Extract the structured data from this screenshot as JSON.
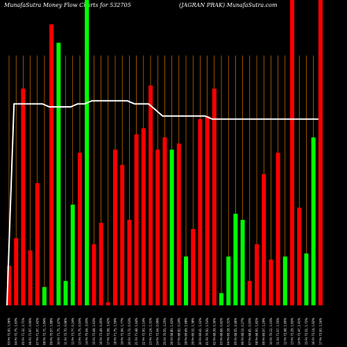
{
  "chart_data": {
    "type": "bar",
    "title_left": "MunafaSutra  Money Flow  Charts for 532705",
    "title_right": "(JAGRAN  PRAK) MunafaSutra.com",
    "ylim": [
      0,
      100
    ],
    "colors": {
      "up": "#00ff00",
      "down": "#ff0000",
      "line": "#ffffff",
      "grid": "#ff8c00",
      "background": "#000000"
    },
    "categories": [
      "03 Fri 72.00, 1.06%",
      "04 Fri 72.75, 1.63%",
      "05 Fri 71.32, 1.71%",
      "06 Fri 71.97, 0.90%",
      "07 Fri 71.97, 1.42%",
      "08 Fri 72.71, 1.84%",
      "09 Fri 70.57, 1.88%",
      "10 Fri 71.75, 1.47%",
      "11 Fri 72.70, 0.96%",
      "12 Fri 73.77, 0.24%",
      "13 Fri 73.75, 0.93%",
      "14 Fri 75.04, 3.93%",
      "15 Fri 73.08, 1.63%",
      "16 Fri 73.49, 0.45%",
      "17 Fri 72.08, 3.42%",
      "18 Fri 71.75, 1.59%",
      "19 Fri 72.94, 1.77%",
      "20 Fri 73.72, 0.53%",
      "21 Fri 71.48, 1.44%",
      "22 Fri 72.00, 2.14%",
      "23 Fri 73.24, 1.31%",
      "24 Fri 72.04, 0.99%",
      "25 Fri 70.55, 2.25%",
      "26 Fri 68.80, 1.43%",
      "27 Fri 68.92, 0.24%",
      "28 Fri 69.69, 1.68%",
      "29 Fri 69.32, 1.38%",
      "30 Fri 69.41, 1.02%",
      "01 Fri 70.50, 1.53%",
      "02 Fri 68.39, 0.30%",
      "03 Fri 68.66, 0.62%",
      "04 Fri 69.18, 0.31%",
      "05 Fri 68.55, 0.46%",
      "06 Fri 68.12, 0.27%",
      "07 Fri 68.81, 0.93%",
      "08 Fri 68.00, 1.82%",
      "09 Fri 69.57, 1.29%",
      "10 Fri 70.12, 1.03%",
      "11 Fri 71.57, 1.55%",
      "12 Fri 72.98, 1.90%",
      "13 Fri 72.29, 1.65%",
      "14 Fri 72.47, 2.41%",
      "15 Fri 72.51, 1.72%",
      "16 Fri 73.14, 1.92%",
      "17 Fri 73.00, 1.16%"
    ],
    "values": [
      13,
      22,
      71,
      18,
      40,
      6,
      92,
      86,
      8,
      33,
      50,
      100,
      20,
      27,
      1,
      51,
      46,
      28,
      56,
      58,
      72,
      51,
      55,
      51,
      53,
      16,
      25,
      61,
      62,
      71,
      4,
      16,
      30,
      28,
      8,
      20,
      43,
      15,
      50,
      16,
      100,
      32,
      17,
      55,
      100
    ],
    "directions": [
      "down",
      "down",
      "down",
      "down",
      "down",
      "up",
      "down",
      "up",
      "up",
      "up",
      "down",
      "up",
      "down",
      "down",
      "down",
      "down",
      "down",
      "down",
      "down",
      "down",
      "down",
      "down",
      "down",
      "up",
      "down",
      "up",
      "down",
      "down",
      "down",
      "down",
      "up",
      "up",
      "up",
      "up",
      "down",
      "down",
      "down",
      "down",
      "down",
      "up",
      "down",
      "down",
      "up",
      "up",
      "down"
    ],
    "line": [
      0,
      66,
      66,
      66,
      66,
      66,
      65,
      65,
      65,
      65,
      66,
      66,
      67,
      67,
      67,
      67,
      67,
      67,
      66,
      66,
      66,
      64,
      62,
      62,
      62,
      62,
      62,
      62,
      62,
      61,
      61,
      61,
      61,
      61,
      61,
      61,
      61,
      61,
      61,
      61,
      61,
      61,
      61,
      61,
      61
    ]
  }
}
